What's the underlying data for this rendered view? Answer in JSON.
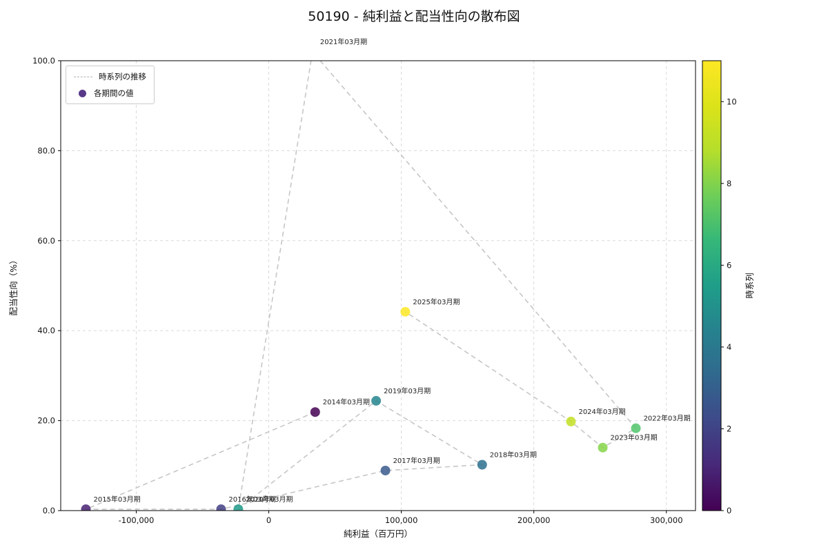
{
  "title": "50190 - 純利益と配当性向の散布図",
  "legend": {
    "line_label": "時系列の推移",
    "point_label": "各期間の値"
  },
  "colorbar": {
    "label": "時系列",
    "vmin": 0,
    "vmax": 11,
    "ticks": [
      0,
      2,
      4,
      6,
      8,
      10
    ],
    "gradient": [
      "#440154",
      "#482878",
      "#3e4989",
      "#31688e",
      "#26828e",
      "#1f9e89",
      "#35b779",
      "#6ece58",
      "#b5de2b",
      "#dce319",
      "#fde725"
    ]
  },
  "chart_data": {
    "type": "scatter",
    "title": "50190 - 純利益と配当性向の散布図",
    "xlabel": "純利益（百万円）",
    "ylabel": "配当性向（%）",
    "xlim": [
      -157000,
      322000
    ],
    "ylim": [
      0,
      100
    ],
    "grid": true,
    "legend_position": "upper-left",
    "xticks": [
      -100000,
      0,
      100000,
      200000,
      300000
    ],
    "xtick_labels": [
      "-100,000",
      "0",
      "100,000",
      "200,000",
      "300,000"
    ],
    "yticks": [
      0,
      20,
      40,
      60,
      80,
      100
    ],
    "ytick_labels": [
      "0.0",
      "20.0",
      "40.0",
      "60.0",
      "80.0",
      "100.0"
    ],
    "line_color": "#c6c6c6",
    "point_color_palette": [
      "#440154",
      "#482173",
      "#433e85",
      "#38598c",
      "#2d708e",
      "#25858e",
      "#1e9b8a",
      "#2ab07f",
      "#51c56a",
      "#85d54a",
      "#c2df23",
      "#fde725"
    ],
    "points": [
      {
        "label": "2014年03月期",
        "t": 0,
        "x": 35000,
        "y": 21.9
      },
      {
        "label": "2015年03月期",
        "t": 1,
        "x": -138000,
        "y": 0.3
      },
      {
        "label": "2016年03月期",
        "t": 2,
        "x": -36000,
        "y": 0.3
      },
      {
        "label": "2017年03月期",
        "t": 3,
        "x": 88000,
        "y": 8.9
      },
      {
        "label": "2018年03月期",
        "t": 4,
        "x": 161000,
        "y": 10.2
      },
      {
        "label": "2019年03月期",
        "t": 5,
        "x": 81000,
        "y": 24.4
      },
      {
        "label": "2020年03月期",
        "t": 6,
        "x": -23000,
        "y": 0.3
      },
      {
        "label": "2021年03月期",
        "t": 7,
        "x": 33000,
        "y": 102
      },
      {
        "label": "2022年03月期",
        "t": 8,
        "x": 277000,
        "y": 18.3
      },
      {
        "label": "2023年03月期",
        "t": 9,
        "x": 252000,
        "y": 14.0
      },
      {
        "label": "2024年03月期",
        "t": 10,
        "x": 228000,
        "y": 19.8
      },
      {
        "label": "2025年03月期",
        "t": 11,
        "x": 103000,
        "y": 44.2
      }
    ]
  }
}
